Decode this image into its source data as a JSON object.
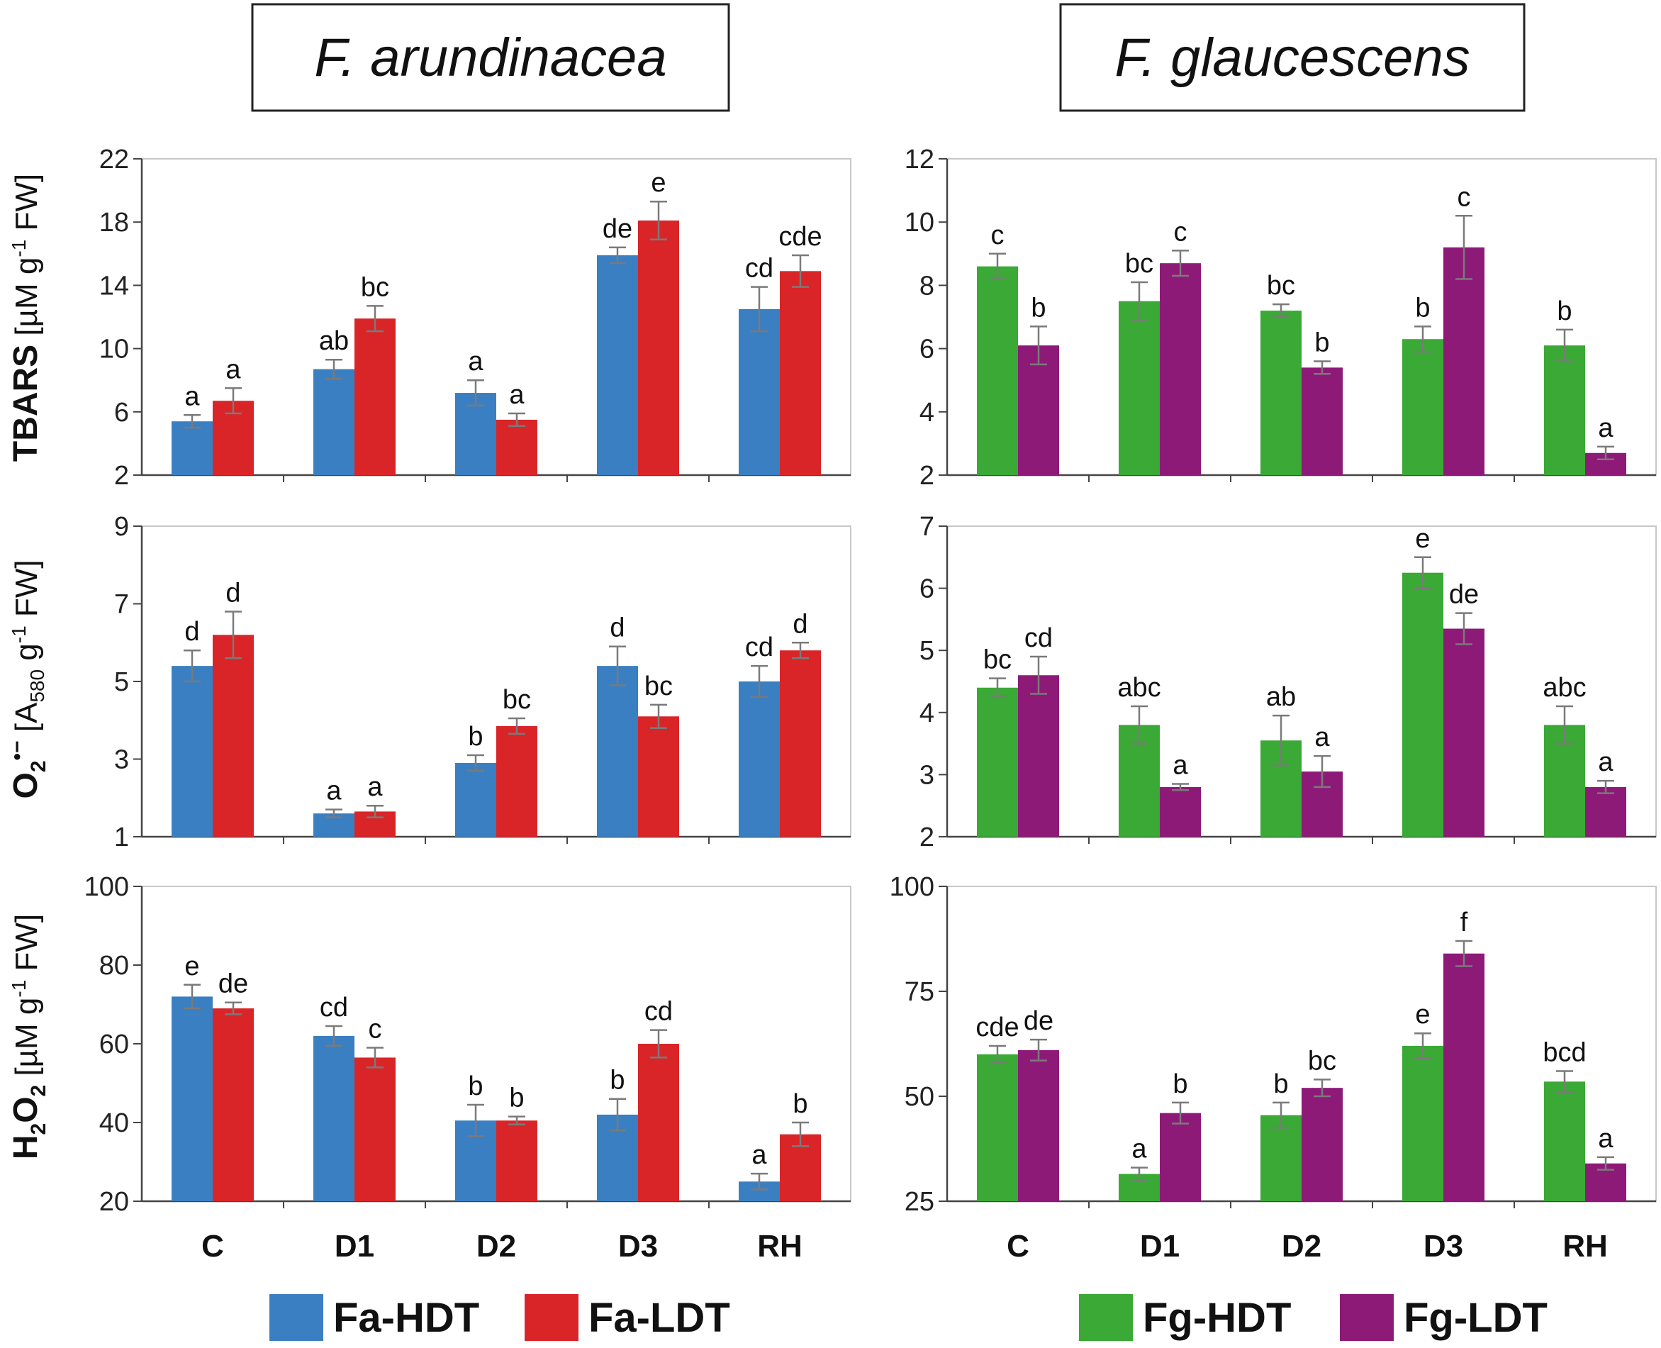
{
  "panel_titles": [
    "F. arundinacea",
    "F. glaucescens"
  ],
  "categories": [
    "C",
    "D1",
    "D2",
    "D3",
    "RH"
  ],
  "colors": {
    "Fa-HDT": "#3a7fc1",
    "Fa-LDT": "#d92528",
    "Fg-HDT": "#3aa935",
    "Fg-LDT": "#8e1a78"
  },
  "legend": {
    "left": [
      {
        "key": "Fa-HDT",
        "label": "Fa-HDT"
      },
      {
        "key": "Fa-LDT",
        "label": "Fa-LDT"
      }
    ],
    "right": [
      {
        "key": "Fg-HDT",
        "label": "Fg-HDT"
      },
      {
        "key": "Fg-LDT",
        "label": "Fg-LDT"
      }
    ]
  },
  "y_labels": {
    "tbars": {
      "main": "TBARS",
      "unit_pre": " [µM g",
      "unit_sup": "-1",
      "unit_post": " FW]"
    },
    "o2": {
      "main": "O",
      "main_sub": "2",
      "main_sup": "•−",
      "unit_pre": " [A",
      "unit_sub": "580",
      "unit_mid": " g",
      "unit_sup": "-1",
      "unit_post": " FW]"
    },
    "h2o2": {
      "main_a": "H",
      "sub_a": "2",
      "main_b": "O",
      "sub_b": "2",
      "unit_pre": " [µM g",
      "unit_sup": "-1",
      "unit_post": " FW]"
    }
  },
  "chart_data": [
    {
      "type": "bar",
      "id": "fa_tbars",
      "title": "F. arundinacea",
      "ylabel": "TBARS [µM g-1 FW]",
      "categories": [
        "C",
        "D1",
        "D2",
        "D3",
        "RH"
      ],
      "ylim": [
        2,
        22
      ],
      "yticks": [
        "2",
        "6",
        "10",
        "14",
        "18",
        "22"
      ],
      "series": [
        {
          "name": "Fa-HDT",
          "values": [
            5.4,
            8.7,
            7.2,
            15.9,
            12.5
          ],
          "errors": [
            0.4,
            0.6,
            0.8,
            0.5,
            1.4
          ],
          "labels": [
            "a",
            "ab",
            "a",
            "de",
            "cd"
          ]
        },
        {
          "name": "Fa-LDT",
          "values": [
            6.7,
            11.9,
            5.5,
            18.1,
            14.9
          ],
          "errors": [
            0.8,
            0.8,
            0.4,
            1.2,
            1.0
          ],
          "labels": [
            "a",
            "bc",
            "a",
            "e",
            "cde"
          ]
        }
      ]
    },
    {
      "type": "bar",
      "id": "fg_tbars",
      "title": "F. glaucescens",
      "ylabel": "TBARS [µM g-1 FW]",
      "categories": [
        "C",
        "D1",
        "D2",
        "D3",
        "RH"
      ],
      "ylim": [
        2,
        12
      ],
      "yticks": [
        "2",
        "4",
        "6",
        "8",
        "10",
        "12"
      ],
      "series": [
        {
          "name": "Fg-HDT",
          "values": [
            8.6,
            7.5,
            7.2,
            6.3,
            6.1
          ],
          "errors": [
            0.4,
            0.6,
            0.2,
            0.4,
            0.5
          ],
          "labels": [
            "c",
            "bc",
            "bc",
            "b",
            "b"
          ]
        },
        {
          "name": "Fg-LDT",
          "values": [
            6.1,
            8.7,
            5.4,
            9.2,
            2.7
          ],
          "errors": [
            0.6,
            0.4,
            0.2,
            1.0,
            0.2
          ],
          "labels": [
            "b",
            "c",
            "b",
            "c",
            "a"
          ]
        }
      ]
    },
    {
      "type": "bar",
      "id": "fa_o2",
      "title": "F. arundinacea",
      "ylabel": "O2•− [A580 g-1 FW]",
      "categories": [
        "C",
        "D1",
        "D2",
        "D3",
        "RH"
      ],
      "ylim": [
        1,
        9
      ],
      "yticks": [
        "1",
        "3",
        "5",
        "7",
        "9"
      ],
      "series": [
        {
          "name": "Fa-HDT",
          "values": [
            5.4,
            1.6,
            2.9,
            5.4,
            5.0
          ],
          "errors": [
            0.4,
            0.1,
            0.2,
            0.5,
            0.4
          ],
          "labels": [
            "d",
            "a",
            "b",
            "d",
            "cd"
          ]
        },
        {
          "name": "Fa-LDT",
          "values": [
            6.2,
            1.65,
            3.85,
            4.1,
            5.8
          ],
          "errors": [
            0.6,
            0.15,
            0.2,
            0.3,
            0.2
          ],
          "labels": [
            "d",
            "a",
            "bc",
            "bc",
            "d"
          ]
        }
      ]
    },
    {
      "type": "bar",
      "id": "fg_o2",
      "title": "F. glaucescens",
      "ylabel": "O2•− [A580 g-1 FW]",
      "categories": [
        "C",
        "D1",
        "D2",
        "D3",
        "RH"
      ],
      "ylim": [
        2,
        7
      ],
      "yticks": [
        "2",
        "3",
        "4",
        "5",
        "6",
        "7"
      ],
      "series": [
        {
          "name": "Fg-HDT",
          "values": [
            4.4,
            3.8,
            3.55,
            6.25,
            3.8
          ],
          "errors": [
            0.15,
            0.3,
            0.4,
            0.25,
            0.3
          ],
          "labels": [
            "bc",
            "abc",
            "ab",
            "e",
            "abc"
          ]
        },
        {
          "name": "Fg-LDT",
          "values": [
            4.6,
            2.8,
            3.05,
            5.35,
            2.8
          ],
          "errors": [
            0.3,
            0.05,
            0.25,
            0.25,
            0.1
          ],
          "labels": [
            "cd",
            "a",
            "a",
            "de",
            "a"
          ]
        }
      ]
    },
    {
      "type": "bar",
      "id": "fa_h2o2",
      "title": "F. arundinacea",
      "ylabel": "H2O2 [µM g-1 FW]",
      "categories": [
        "C",
        "D1",
        "D2",
        "D3",
        "RH"
      ],
      "ylim": [
        20,
        100
      ],
      "yticks": [
        "20",
        "40",
        "60",
        "80",
        "100"
      ],
      "series": [
        {
          "name": "Fa-HDT",
          "values": [
            72,
            62,
            40.5,
            42,
            25
          ],
          "errors": [
            3,
            2.5,
            4,
            4,
            2
          ],
          "labels": [
            "e",
            "cd",
            "b",
            "b",
            "a"
          ]
        },
        {
          "name": "Fa-LDT",
          "values": [
            69,
            56.5,
            40.5,
            60,
            37
          ],
          "errors": [
            1.5,
            2.5,
            1,
            3.5,
            3
          ],
          "labels": [
            "de",
            "c",
            "b",
            "cd",
            "b"
          ]
        }
      ]
    },
    {
      "type": "bar",
      "id": "fg_h2o2",
      "title": "F. glaucescens",
      "ylabel": "H2O2 [µM g-1 FW]",
      "categories": [
        "C",
        "D1",
        "D2",
        "D3",
        "RH"
      ],
      "ylim": [
        25,
        100
      ],
      "yticks": [
        "25",
        "50",
        "75",
        "100"
      ],
      "series": [
        {
          "name": "Fg-HDT",
          "values": [
            60,
            31.5,
            45.5,
            62,
            53.5
          ],
          "errors": [
            2,
            1.5,
            3,
            3,
            2.5
          ],
          "labels": [
            "cde",
            "a",
            "b",
            "e",
            "bcd"
          ]
        },
        {
          "name": "Fg-LDT",
          "values": [
            61,
            46,
            52,
            84,
            34
          ],
          "errors": [
            2.5,
            2.5,
            2,
            3,
            1.5
          ],
          "labels": [
            "de",
            "b",
            "bc",
            "f",
            "a"
          ]
        }
      ]
    }
  ]
}
